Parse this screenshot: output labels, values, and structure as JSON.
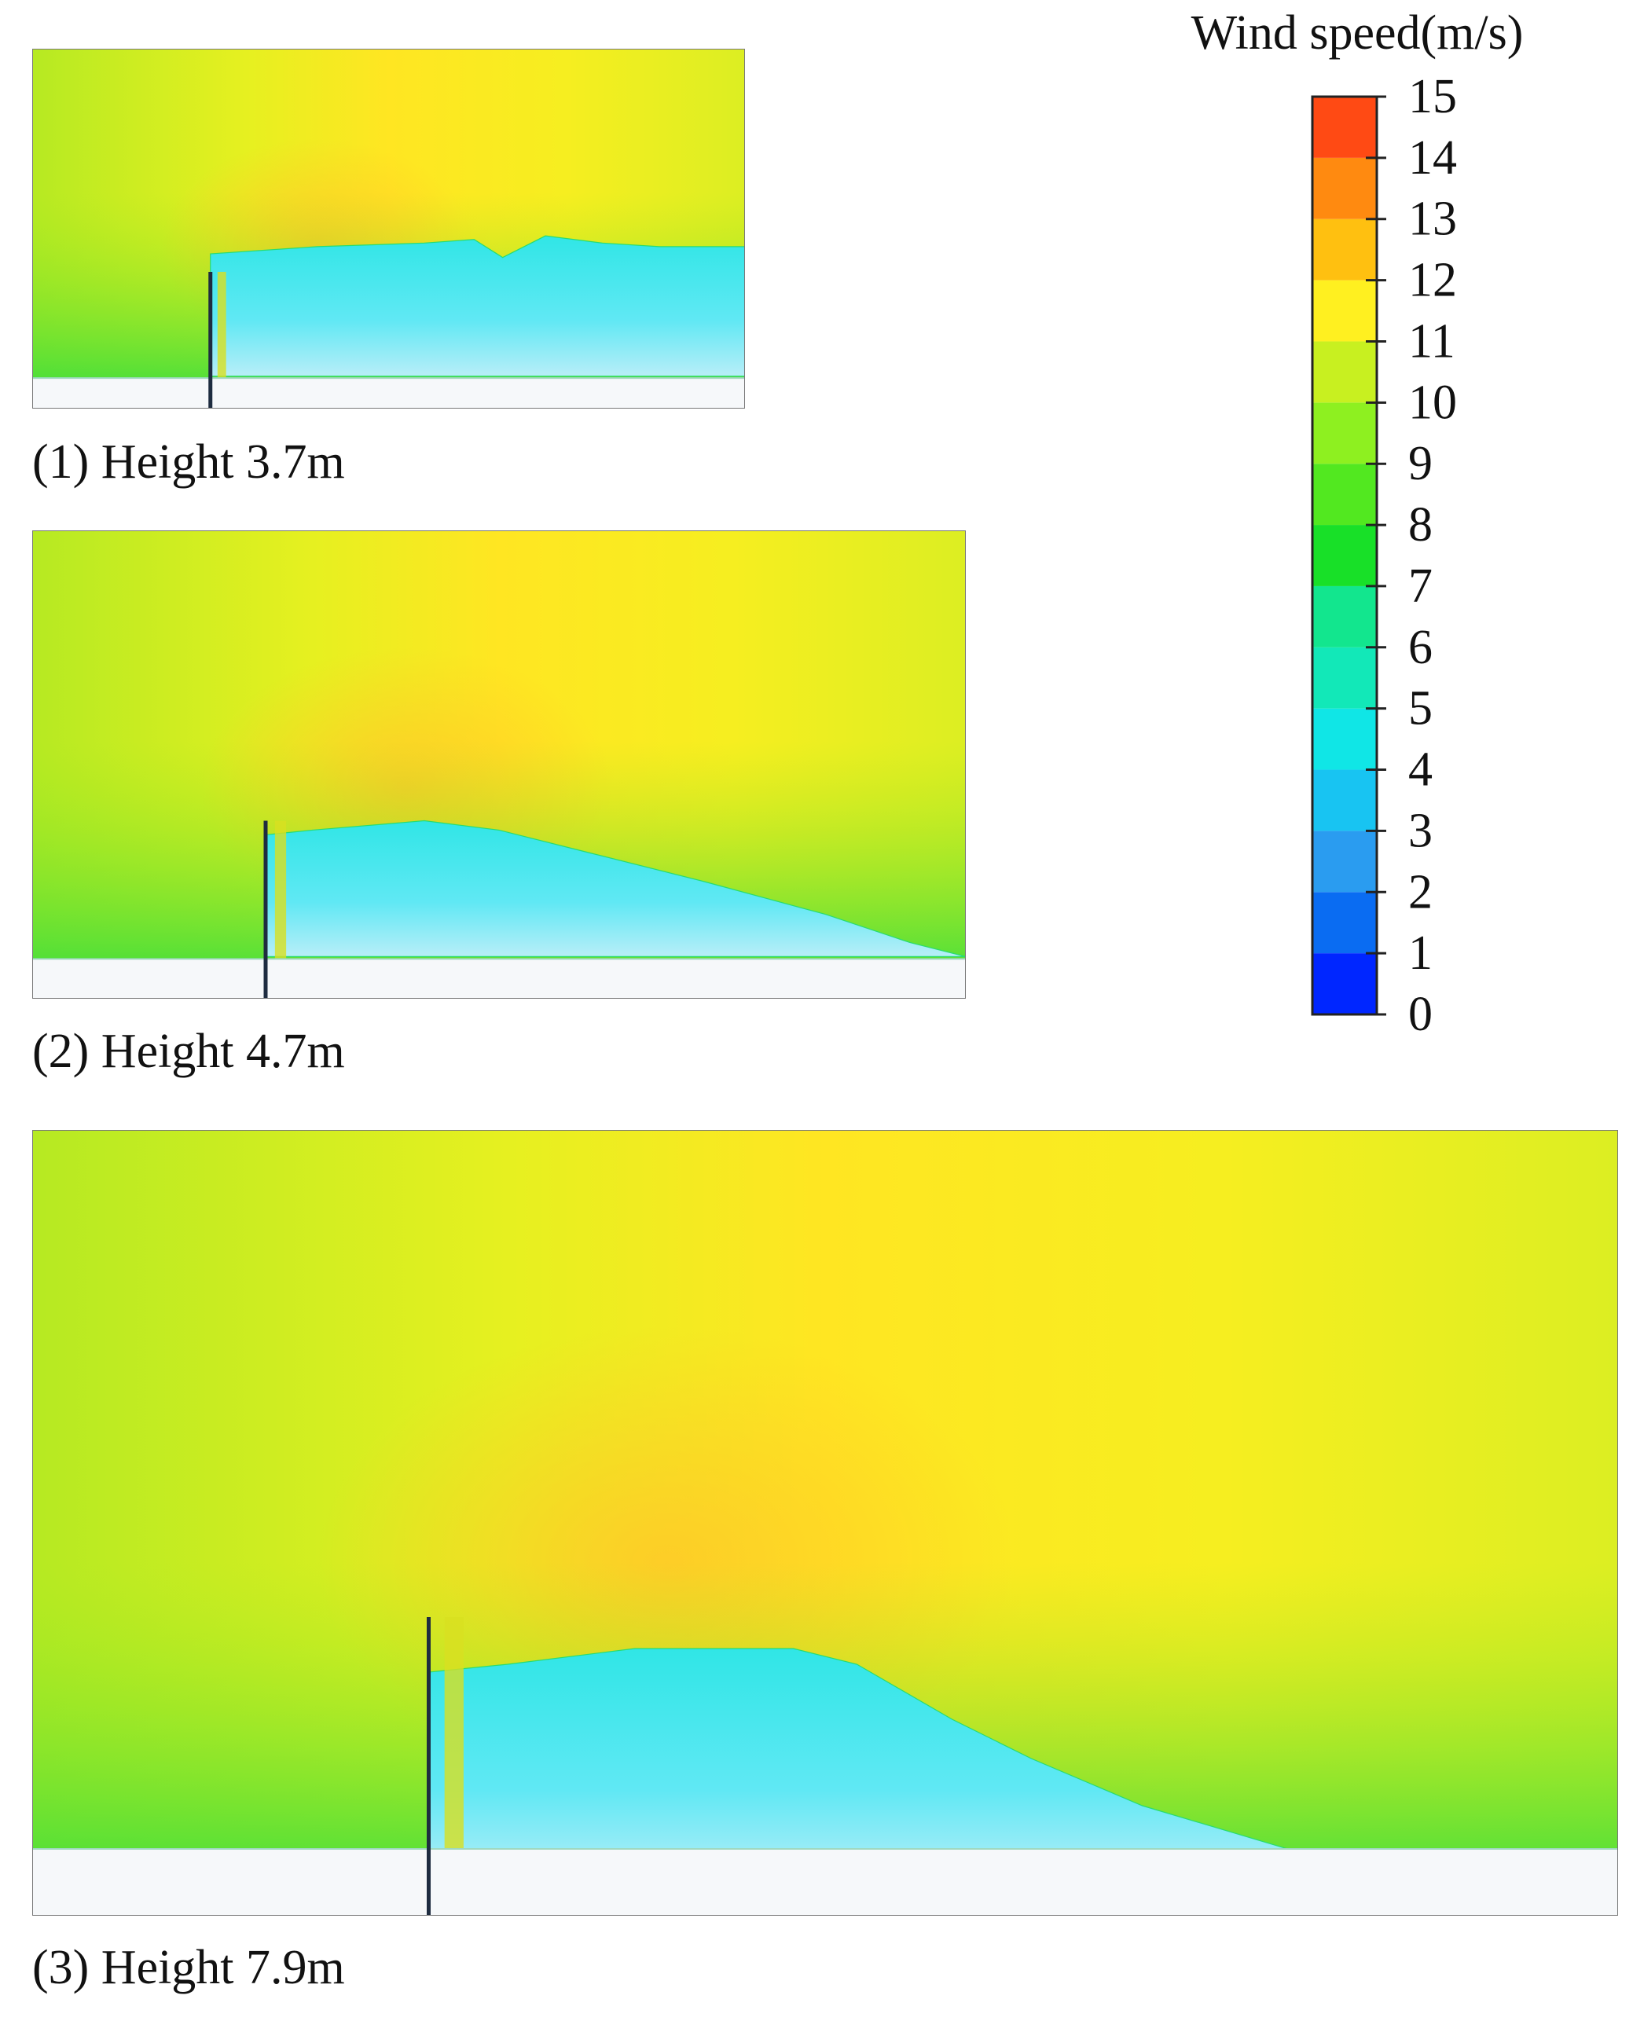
{
  "colorbar": {
    "title": "Wind speed(m/s)",
    "ticks": [
      0,
      1,
      2,
      3,
      4,
      5,
      6,
      7,
      8,
      9,
      10,
      11,
      12,
      13,
      14,
      15
    ],
    "colors": [
      "#0026ff",
      "#0a6cf2",
      "#2a9cf0",
      "#18c4f2",
      "#10e6e6",
      "#12e8b8",
      "#12e68e",
      "#18e028",
      "#52e820",
      "#8ef020",
      "#c8f020",
      "#fff020",
      "#ffc010",
      "#ff8a10",
      "#ff4a14"
    ]
  },
  "panels": [
    {
      "caption": "(1) Height 3.7m"
    },
    {
      "caption": "(2) Height 4.7m"
    },
    {
      "caption": "(3) Height 7.9m"
    }
  ]
}
